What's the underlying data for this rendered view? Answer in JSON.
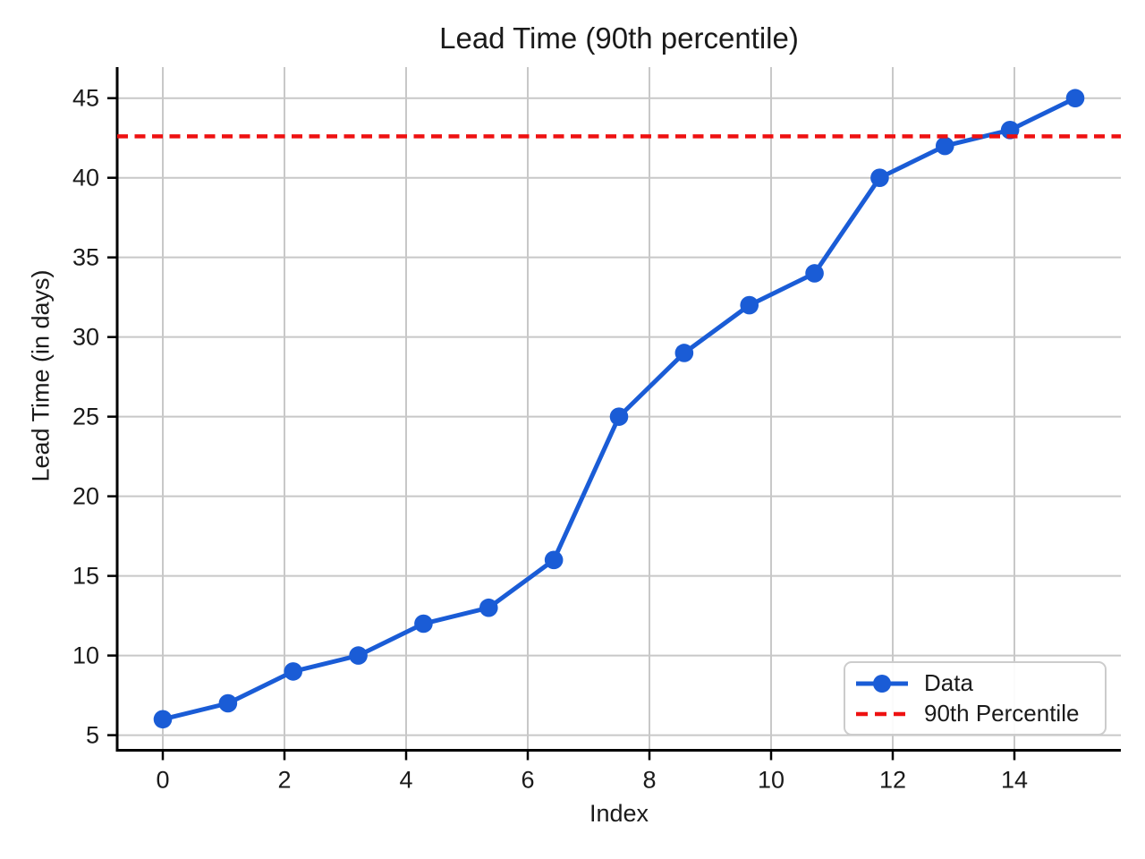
{
  "chart_data": {
    "type": "line",
    "title": "Lead Time (90th percentile)",
    "xlabel": "Index",
    "ylabel": "Lead Time (in days)",
    "x": [
      0,
      1.0714,
      2.1429,
      3.2143,
      4.2857,
      5.3571,
      6.4286,
      7.5,
      8.5714,
      9.6429,
      10.7143,
      11.7857,
      12.8571,
      13.9286,
      15
    ],
    "series": [
      {
        "name": "Data",
        "kind": "line-markers",
        "color": "#1a5cd6",
        "values": [
          6,
          7,
          9,
          10,
          12,
          13,
          16,
          25,
          29,
          32,
          34,
          40,
          42,
          43,
          45
        ]
      },
      {
        "name": "90th Percentile",
        "kind": "hline-dashed",
        "color": "#ee1111",
        "value": 42.6
      }
    ],
    "xticks": [
      0,
      2,
      4,
      6,
      8,
      10,
      12,
      14
    ],
    "yticks": [
      5,
      10,
      15,
      20,
      25,
      30,
      35,
      40,
      45
    ],
    "xlim": [
      -0.75,
      15.75
    ],
    "ylim": [
      4.05,
      46.95
    ],
    "grid": true,
    "grid_color": "#c8c8c8",
    "axis_color": "#000000",
    "text_color": "#1a1a1a",
    "legend_position": "lower right"
  }
}
